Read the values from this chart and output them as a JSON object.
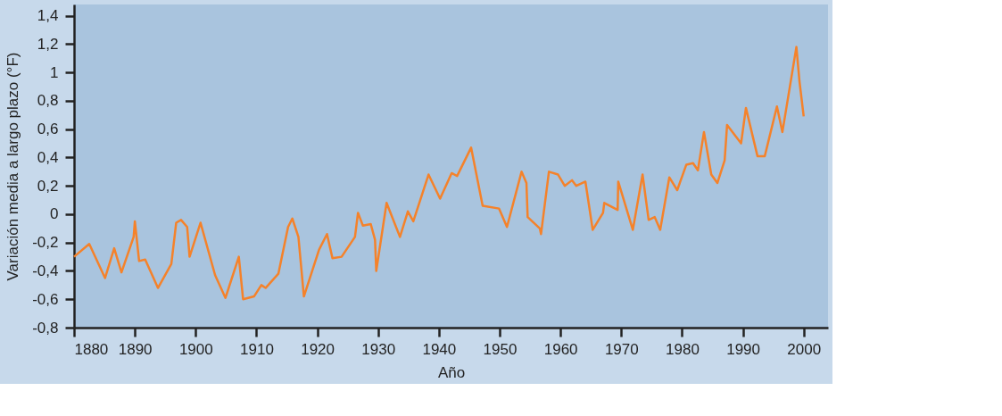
{
  "chart_data": {
    "type": "line",
    "xlabel": "Año",
    "ylabel": "Variación media a largo plazo (°F)",
    "x": [
      1880,
      1882.5,
      1885.1,
      1886.6,
      1887.8,
      1889.8,
      1890,
      1890.7,
      1891.7,
      1893.8,
      1896,
      1896.8,
      1897.6,
      1898.6,
      1899,
      1900.8,
      1903.2,
      1904.9,
      1907.1,
      1907.8,
      1909.6,
      1910.8,
      1911.5,
      1913.6,
      1915.2,
      1915.9,
      1916.9,
      1917.8,
      1920.3,
      1921.6,
      1922.5,
      1924,
      1926.2,
      1926.7,
      1927.5,
      1928.8,
      1929.5,
      1929.7,
      1931.4,
      1933.6,
      1934.9,
      1935.8,
      1938.3,
      1940.2,
      1942.1,
      1943,
      1945.3,
      1947.2,
      1949.9,
      1951.2,
      1953.6,
      1954.4,
      1954.6,
      1956.6,
      1956.8,
      1958.1,
      1959.6,
      1960.7,
      1961.9,
      1962.6,
      1964.1,
      1965.3,
      1967,
      1967.2,
      1969.4,
      1969.5,
      1971.9,
      1973.5,
      1974.5,
      1975.5,
      1976.4,
      1977.9,
      1979.2,
      1980.7,
      1981.8,
      1982.6,
      1983.6,
      1984.8,
      1985.8,
      1987,
      1987.4,
      1989.7,
      1990.5,
      1992.4,
      1993.6,
      1995.6,
      1996.5,
      1998.8,
      1999.3,
      2000
    ],
    "series": [
      {
        "color": "#f5822a",
        "values": [
          -0.3,
          -0.21,
          -0.45,
          -0.24,
          -0.41,
          -0.16,
          -0.05,
          -0.33,
          -0.32,
          -0.52,
          -0.35,
          -0.06,
          -0.04,
          -0.09,
          -0.3,
          -0.06,
          -0.43,
          -0.59,
          -0.3,
          -0.6,
          -0.58,
          -0.5,
          -0.52,
          -0.42,
          -0.09,
          -0.03,
          -0.16,
          -0.58,
          -0.25,
          -0.14,
          -0.31,
          -0.3,
          -0.16,
          0.01,
          -0.08,
          -0.07,
          -0.18,
          -0.4,
          0.08,
          -0.16,
          0.02,
          -0.05,
          0.28,
          0.11,
          0.29,
          0.27,
          0.47,
          0.06,
          0.04,
          -0.09,
          0.3,
          0.22,
          -0.02,
          -0.1,
          -0.14,
          0.3,
          0.28,
          0.2,
          0.24,
          0.2,
          0.23,
          -0.11,
          0.01,
          0.08,
          0.03,
          0.23,
          -0.11,
          0.28,
          -0.04,
          -0.02,
          -0.11,
          0.26,
          0.17,
          0.35,
          0.36,
          0.31,
          0.58,
          0.28,
          0.22,
          0.38,
          0.63,
          0.5,
          0.75,
          0.41,
          0.41,
          0.76,
          0.58,
          1.18,
          0.94,
          0.69
        ]
      }
    ],
    "xlim": [
      1880,
      2004
    ],
    "xticks": [
      1880,
      1890,
      1900,
      1910,
      1920,
      1930,
      1940,
      1950,
      1960,
      1970,
      1980,
      1990,
      2000
    ],
    "ylim": [
      -0.8,
      1.48
    ],
    "yticks": [
      {
        "value": -0.8,
        "label": "-0,8"
      },
      {
        "value": -0.6,
        "label": "-0,6"
      },
      {
        "value": -0.4,
        "label": "-0,4"
      },
      {
        "value": -0.2,
        "label": "-0,2"
      },
      0,
      {
        "value": 0.2,
        "label": "0,2"
      },
      {
        "value": 0.4,
        "label": "0,4"
      },
      {
        "value": 0.6,
        "label": "0,6"
      },
      {
        "value": 0.8,
        "label": "0,8"
      },
      1,
      {
        "value": 1.2,
        "label": "1,2"
      },
      {
        "value": 1.4,
        "label": "1,4"
      }
    ],
    "grid": false,
    "marker": "none",
    "line_style": "solid"
  }
}
